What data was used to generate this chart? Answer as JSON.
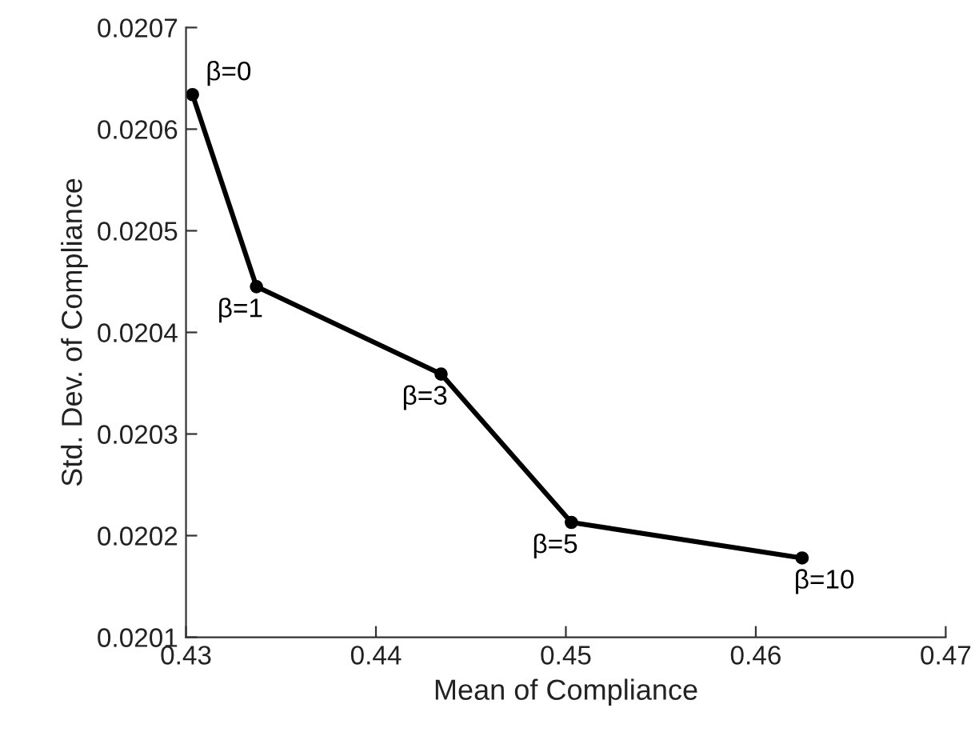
{
  "chart_data": {
    "type": "line",
    "xlabel": "Mean of Compliance",
    "ylabel": "Std. Dev. of Compliance",
    "x": [
      0.43034,
      0.43371,
      0.44343,
      0.45029,
      0.46244
    ],
    "series": [
      {
        "color": "#000000",
        "values": [
          0.020634,
          0.020445,
          0.020359,
          0.020213,
          0.020178
        ]
      }
    ],
    "marker": "circle",
    "line_style": "solid",
    "grid": false,
    "legend": false,
    "xlim": [
      0.43,
      0.47
    ],
    "xticks": [
      0.43,
      0.44,
      0.45,
      0.46,
      0.47
    ],
    "ylim": [
      0.0201,
      0.0207
    ],
    "yticks": [
      0.0201,
      0.0202,
      0.0203,
      0.0204,
      0.0205,
      0.0206,
      0.0207
    ],
    "annotations": [
      {
        "text": "β=0",
        "x": 0.43034,
        "y": 0.020634
      },
      {
        "text": "β=1",
        "x": 0.43371,
        "y": 0.020445
      },
      {
        "text": "β=3",
        "x": 0.44343,
        "y": 0.020359
      },
      {
        "text": "β=5",
        "x": 0.45029,
        "y": 0.020213
      },
      {
        "text": "β=10",
        "x": 0.46244,
        "y": 0.020178
      }
    ]
  }
}
